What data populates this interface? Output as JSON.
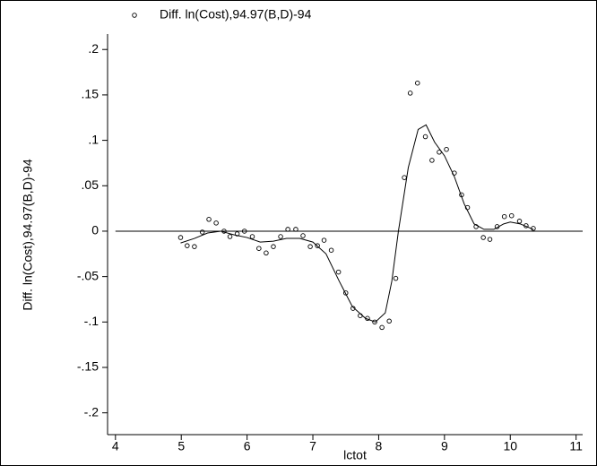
{
  "chart_data": {
    "type": "scatter",
    "xlabel": "lctot",
    "ylabel": "Diff. ln(Cost),94.97(B,D)-94",
    "xlim": [
      3.88,
      11.1
    ],
    "ylim": [
      -0.224,
      0.217
    ],
    "xticks": [
      4,
      5,
      6,
      7,
      8,
      9,
      10,
      11
    ],
    "yticks": [
      {
        "value": 0.2,
        "label": ".2"
      },
      {
        "value": 0.15,
        "label": ".15"
      },
      {
        "value": 0.1,
        "label": ".1"
      },
      {
        "value": 0.05,
        "label": ".05"
      },
      0,
      {
        "value": -0.05,
        "label": "-.05"
      },
      {
        "value": -0.1,
        "label": "-.1"
      },
      {
        "value": -0.15,
        "label": "-.15"
      },
      {
        "value": -0.2,
        "label": "-.2"
      }
    ],
    "reference_line": 0,
    "legend": "top",
    "series": [
      {
        "name": "Diff. ln(Cost),94.97(B,D)-94",
        "color": "#000000",
        "style": "hollow-circle",
        "x": [
          4.99,
          5.09,
          5.2,
          5.32,
          5.42,
          5.53,
          5.65,
          5.74,
          5.85,
          5.96,
          6.08,
          6.18,
          6.29,
          6.4,
          6.51,
          6.62,
          6.74,
          6.85,
          6.96,
          7.07,
          7.17,
          7.28,
          7.39,
          7.5,
          7.61,
          7.72,
          7.83,
          7.94,
          8.05,
          8.16,
          8.26,
          8.39,
          8.48,
          8.59,
          8.71,
          8.81,
          8.92,
          9.03,
          9.15,
          9.26,
          9.35,
          9.48,
          9.59,
          9.69,
          9.8,
          9.91,
          10.02,
          10.14,
          10.24,
          10.35
        ],
        "values": [
          -0.007,
          -0.016,
          -0.017,
          -0.001,
          0.013,
          0.009,
          0.0,
          -0.006,
          -0.003,
          0.0,
          -0.006,
          -0.019,
          -0.024,
          -0.017,
          -0.006,
          0.002,
          0.002,
          -0.005,
          -0.017,
          -0.016,
          -0.01,
          -0.021,
          -0.045,
          -0.068,
          -0.085,
          -0.093,
          -0.096,
          -0.1,
          -0.106,
          -0.099,
          -0.052,
          0.059,
          0.152,
          0.163,
          0.104,
          0.078,
          0.087,
          0.09,
          0.064,
          0.04,
          0.026,
          0.005,
          -0.007,
          -0.009,
          0.005,
          0.016,
          0.017,
          0.011,
          0.006,
          0.003
        ]
      },
      {
        "color": "#000000",
        "style": "line",
        "x": [
          4.99,
          5.2,
          5.4,
          5.6,
          5.8,
          6.0,
          6.2,
          6.4,
          6.6,
          6.8,
          7.0,
          7.2,
          7.4,
          7.6,
          7.8,
          7.95,
          8.1,
          8.2,
          8.3,
          8.45,
          8.6,
          8.72,
          8.85,
          9.0,
          9.15,
          9.3,
          9.45,
          9.6,
          9.75,
          9.9,
          10.0,
          10.15,
          10.35
        ],
        "values": [
          -0.013,
          -0.008,
          -0.002,
          0.0,
          -0.004,
          -0.007,
          -0.012,
          -0.011,
          -0.008,
          -0.008,
          -0.012,
          -0.025,
          -0.055,
          -0.083,
          -0.096,
          -0.1,
          -0.09,
          -0.055,
          0.0,
          0.07,
          0.112,
          0.117,
          0.098,
          0.083,
          0.06,
          0.03,
          0.008,
          0.002,
          0.002,
          0.008,
          0.01,
          0.008,
          0.002
        ]
      }
    ]
  }
}
